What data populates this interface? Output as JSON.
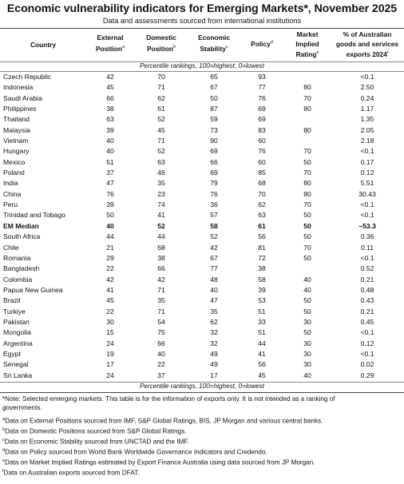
{
  "title": "Economic vulnerability indicators for Emerging Markets*, November 2025",
  "subtitle": "Data and assessments sourced from international institutions",
  "headers": {
    "country": "Country",
    "external": "External",
    "external2": "Position",
    "external_sup": "a",
    "domestic": "Domestic",
    "domestic2": "Position",
    "domestic_sup": "b",
    "economic": "Economic",
    "economic2": "Stability",
    "economic_sup": "c",
    "policy": "Policy",
    "policy_sup": "d",
    "market": "Market",
    "market2": "Implied",
    "market3": "Rating",
    "market_sup": "e",
    "exports": "% of Australian",
    "exports2": "goods and services",
    "exports3": "exports 2024",
    "exports_sup": "f"
  },
  "ranking_note": "Percentile rankings, 100=highest, 0=lowest",
  "rows": [
    {
      "country": "Czech Republic",
      "external": "42",
      "domestic": "70",
      "economic": "65",
      "policy": "93",
      "market": "",
      "exports": "<0.1"
    },
    {
      "country": "Indonesia",
      "external": "45",
      "domestic": "71",
      "economic": "67",
      "policy": "77",
      "market": "80",
      "exports": "2.50"
    },
    {
      "country": "Saudi Arabia",
      "external": "66",
      "domestic": "62",
      "economic": "50",
      "policy": "76",
      "market": "70",
      "exports": "0.24"
    },
    {
      "country": "Philippines",
      "external": "38",
      "domestic": "61",
      "economic": "87",
      "policy": "69",
      "market": "80",
      "exports": "1.17"
    },
    {
      "country": "Thailand",
      "external": "63",
      "domestic": "52",
      "economic": "59",
      "policy": "69",
      "market": "",
      "exports": "1.35"
    },
    {
      "country": "Malaysia",
      "external": "39",
      "domestic": "45",
      "economic": "73",
      "policy": "83",
      "market": "80",
      "exports": "2.05"
    },
    {
      "country": "Vietnam",
      "external": "40",
      "domestic": "71",
      "economic": "90",
      "policy": "60",
      "market": "",
      "exports": "2.18"
    },
    {
      "country": "Hungary",
      "external": "40",
      "domestic": "52",
      "economic": "69",
      "policy": "76",
      "market": "70",
      "exports": "<0.1"
    },
    {
      "country": "Mexico",
      "external": "51",
      "domestic": "63",
      "economic": "66",
      "policy": "60",
      "market": "50",
      "exports": "0.17"
    },
    {
      "country": "Poland",
      "external": "37",
      "domestic": "46",
      "economic": "69",
      "policy": "85",
      "market": "70",
      "exports": "0.12"
    },
    {
      "country": "India",
      "external": "47",
      "domestic": "35",
      "economic": "79",
      "policy": "68",
      "market": "80",
      "exports": "5.51"
    },
    {
      "country": "China",
      "external": "76",
      "domestic": "23",
      "economic": "76",
      "policy": "70",
      "market": "80",
      "exports": "30.43"
    },
    {
      "country": "Peru",
      "external": "39",
      "domestic": "74",
      "economic": "36",
      "policy": "62",
      "market": "70",
      "exports": "<0.1"
    },
    {
      "country": "Trinidad and Tobago",
      "external": "50",
      "domestic": "41",
      "economic": "57",
      "policy": "63",
      "market": "50",
      "exports": "<0.1"
    },
    {
      "country": "EM Median",
      "external": "40",
      "domestic": "52",
      "economic": "58",
      "policy": "61",
      "market": "50",
      "exports": "~53.3",
      "bold": true
    },
    {
      "country": "South Africa",
      "external": "44",
      "domestic": "44",
      "economic": "52",
      "policy": "56",
      "market": "50",
      "exports": "0.36"
    },
    {
      "country": "Chile",
      "external": "21",
      "domestic": "68",
      "economic": "42",
      "policy": "81",
      "market": "70",
      "exports": "0.11"
    },
    {
      "country": "Romania",
      "external": "29",
      "domestic": "38",
      "economic": "67",
      "policy": "72",
      "market": "50",
      "exports": "<0.1"
    },
    {
      "country": "Bangladesh",
      "external": "22",
      "domestic": "66",
      "economic": "77",
      "policy": "38",
      "market": "",
      "exports": "0.52"
    },
    {
      "country": "Colombia",
      "external": "42",
      "domestic": "42",
      "economic": "48",
      "policy": "58",
      "market": "40",
      "exports": "0.21"
    },
    {
      "country": "Papua New Guinea",
      "external": "41",
      "domestic": "71",
      "economic": "40",
      "policy": "39",
      "market": "40",
      "exports": "0.48"
    },
    {
      "country": "Brazil",
      "external": "45",
      "domestic": "35",
      "economic": "47",
      "policy": "53",
      "market": "50",
      "exports": "0.43"
    },
    {
      "country": "Turkiye",
      "external": "22",
      "domestic": "71",
      "economic": "35",
      "policy": "51",
      "market": "50",
      "exports": "0.21"
    },
    {
      "country": "Pakistan",
      "external": "30",
      "domestic": "54",
      "economic": "62",
      "policy": "33",
      "market": "30",
      "exports": "0.45"
    },
    {
      "country": "Mongolia",
      "external": "15",
      "domestic": "75",
      "economic": "32",
      "policy": "51",
      "market": "50",
      "exports": "<0.1"
    },
    {
      "country": "Argentina",
      "external": "24",
      "domestic": "66",
      "economic": "32",
      "policy": "44",
      "market": "30",
      "exports": "0.12"
    },
    {
      "country": "Egypt",
      "external": "19",
      "domestic": "40",
      "economic": "49",
      "policy": "41",
      "market": "30",
      "exports": "<0.1"
    },
    {
      "country": "Senegal",
      "external": "17",
      "domestic": "22",
      "economic": "49",
      "policy": "56",
      "market": "30",
      "exports": "0.02"
    },
    {
      "country": "Sri Lanka",
      "external": "24",
      "domestic": "37",
      "economic": "17",
      "policy": "45",
      "market": "40",
      "exports": "0.29"
    }
  ],
  "footnotes": {
    "note": "*Note: Selected emerging markets. This table is for the information of exports only. It is not intended as a ranking of",
    "note2": "governments.",
    "a_mark": "a",
    "a": "Data on External Positions sourced from IMF, S&P Global Ratings, BIS, JP Morgan and various central banks.",
    "b_mark": "b",
    "b": "Data on Domestic Positions sourced from S&P Global Ratings.",
    "c_mark": "c",
    "c": "Data on Economic Stability sourced from UNCTAD and the IMF.",
    "d_mark": "d",
    "d": "Data on Policy sourced from World Bank Worldwide Governance Indicators and Credendo.",
    "e_mark": "e",
    "e": "Data on Market Implied Ratings estimated by Export Finance Australia using data sourced from JP Morgan.",
    "f_mark": "f",
    "f": "Data on Australian exports sourced from DFAT."
  }
}
